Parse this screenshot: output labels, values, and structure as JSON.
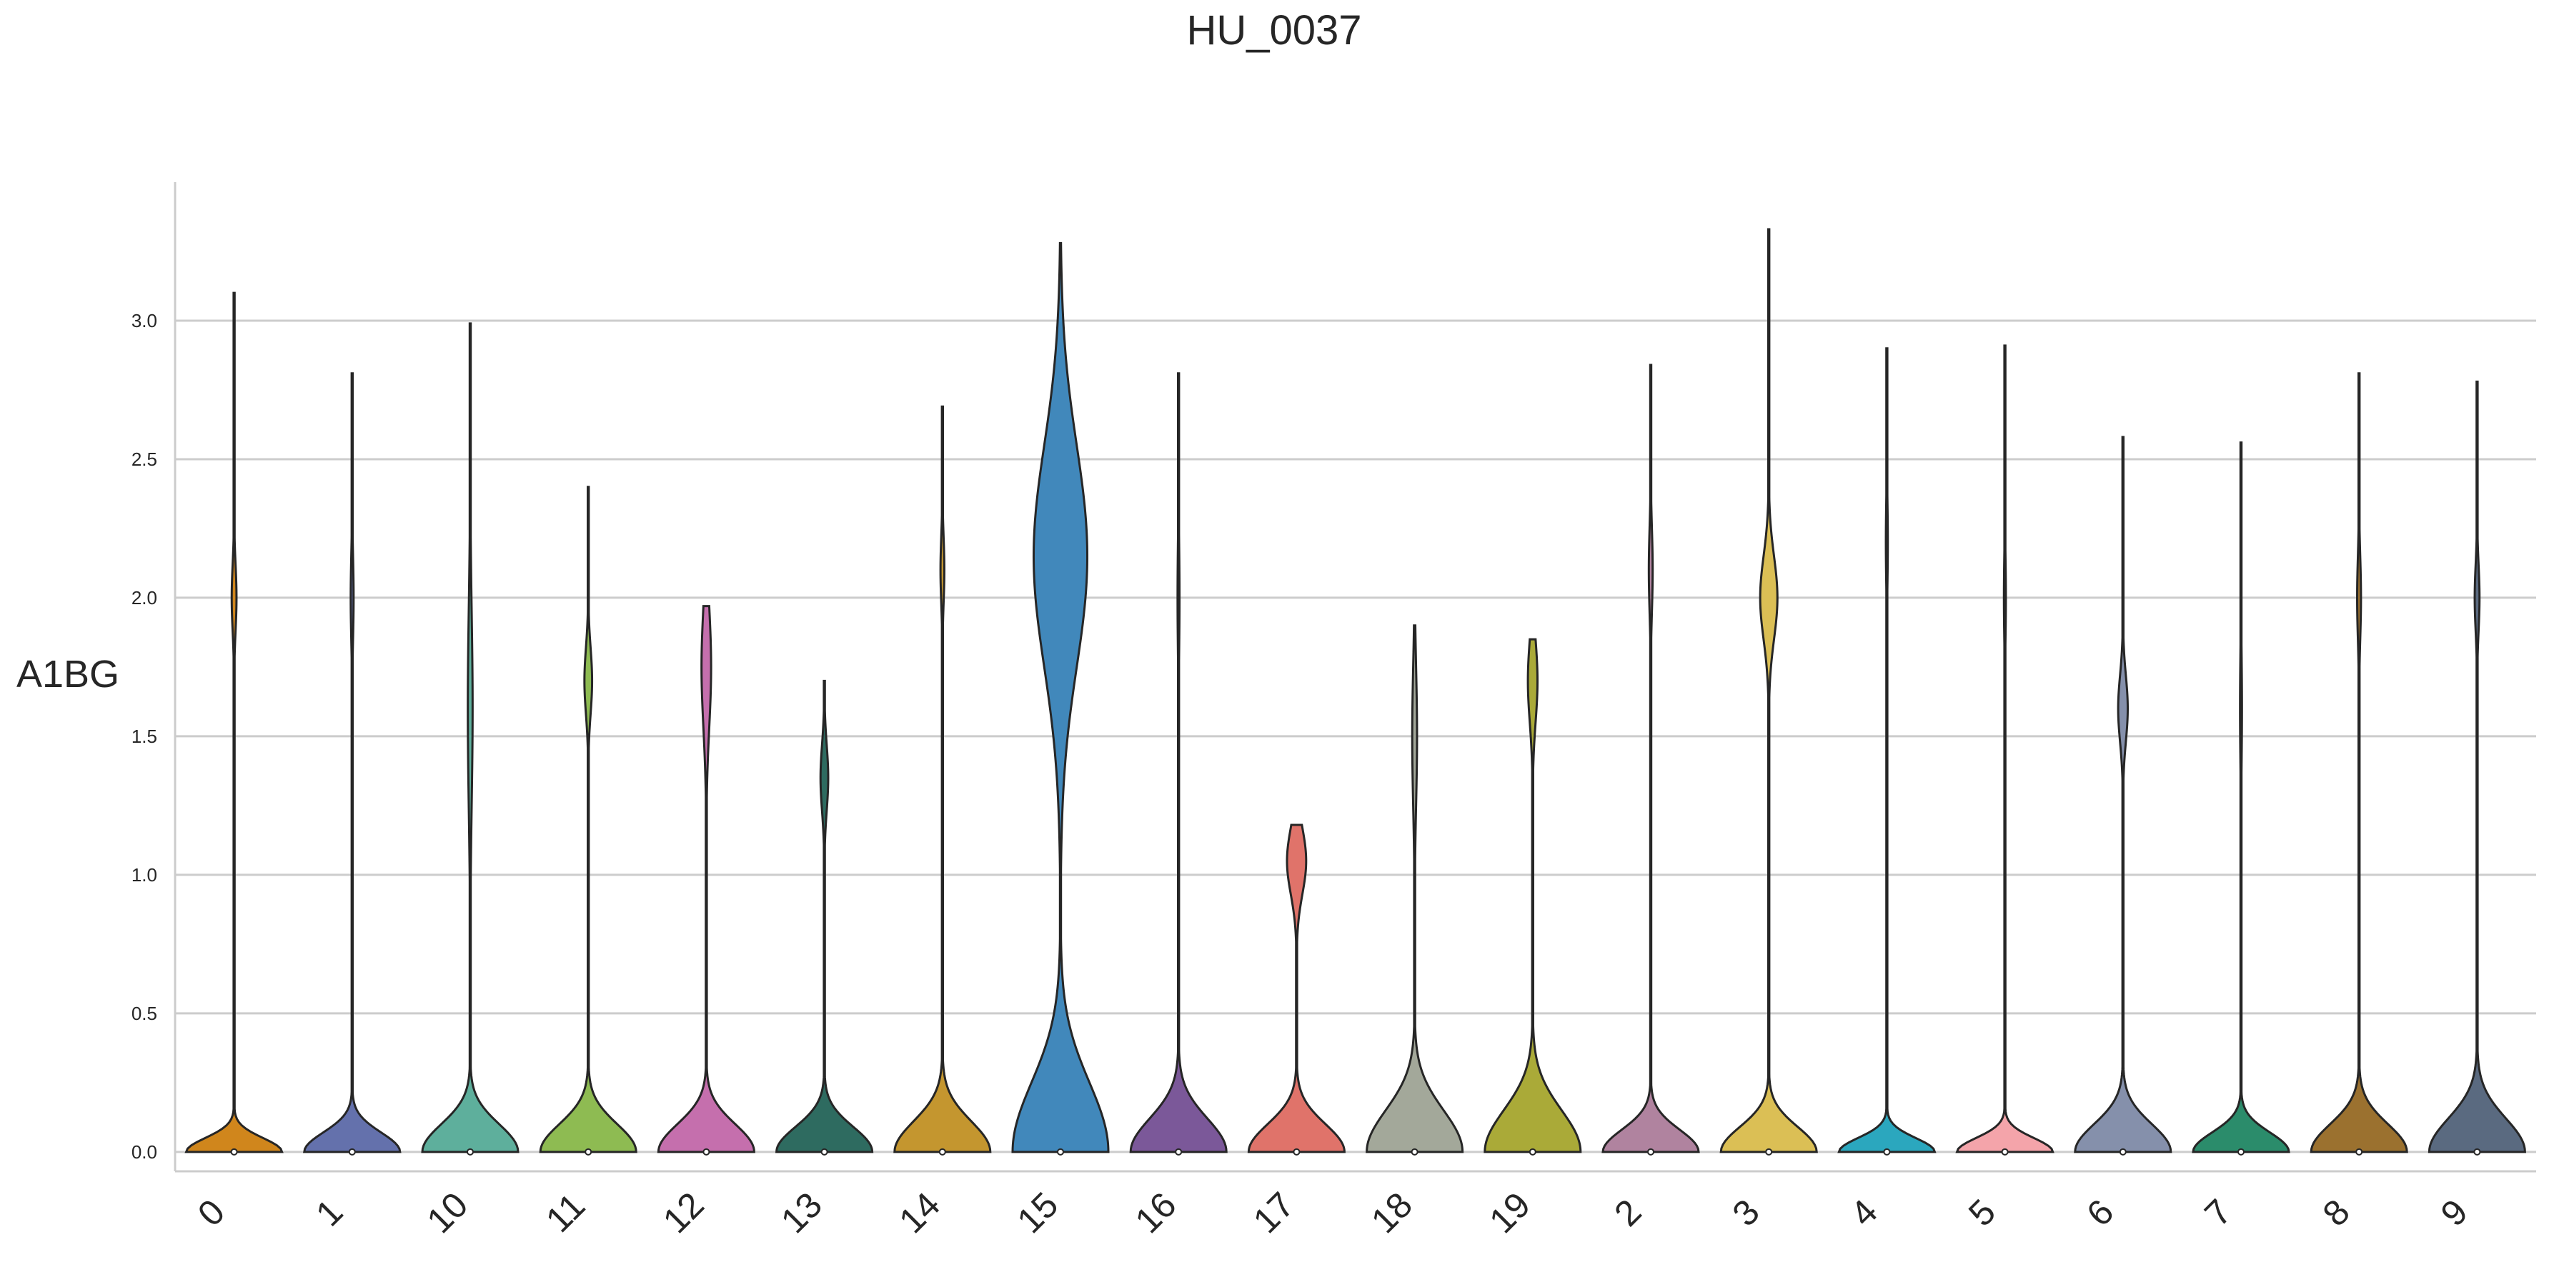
{
  "chart_data": {
    "type": "violin",
    "title": "HU_0037",
    "ylabel": "A1BG",
    "xlabel": "",
    "ylim": [
      -0.07,
      3.5
    ],
    "yticks": [
      "0.0",
      "0.5",
      "1.0",
      "1.5",
      "2.0",
      "2.5",
      "3.0"
    ],
    "grid": "horizontal",
    "categories": [
      "0",
      "1",
      "10",
      "11",
      "12",
      "13",
      "14",
      "15",
      "16",
      "17",
      "18",
      "19",
      "2",
      "3",
      "4",
      "5",
      "6",
      "7",
      "8",
      "9"
    ],
    "series": [
      {
        "category": "0",
        "color": "#d0861c",
        "max": 3.1,
        "median": 0.0,
        "peak": 2.0,
        "modes": [
          [
            0.0,
            0.05,
            1.0
          ],
          [
            2.0,
            0.12,
            0.05
          ]
        ]
      },
      {
        "category": "1",
        "color": "#6471ac",
        "max": 2.81,
        "median": 0.0,
        "peak": 2.0,
        "modes": [
          [
            0.0,
            0.07,
            1.0
          ],
          [
            2.0,
            0.15,
            0.03
          ]
        ]
      },
      {
        "category": "10",
        "color": "#5eaf9c",
        "max": 2.99,
        "median": 0.0,
        "peak": 1.6,
        "modes": [
          [
            0.0,
            0.1,
            1.0
          ],
          [
            1.6,
            0.35,
            0.05
          ]
        ]
      },
      {
        "category": "11",
        "color": "#8ebb52",
        "max": 2.4,
        "median": 0.0,
        "peak": 1.7,
        "modes": [
          [
            0.0,
            0.1,
            1.0
          ],
          [
            1.7,
            0.12,
            0.08
          ]
        ]
      },
      {
        "category": "12",
        "color": "#c56fad",
        "max": 1.97,
        "median": 0.0,
        "peak": 1.75,
        "modes": [
          [
            0.0,
            0.1,
            1.0
          ],
          [
            1.75,
            0.22,
            0.1
          ]
        ]
      },
      {
        "category": "13",
        "color": "#2e6b60",
        "max": 1.7,
        "median": 0.0,
        "peak": 1.35,
        "modes": [
          [
            0.0,
            0.09,
            1.0
          ],
          [
            1.35,
            0.12,
            0.08
          ]
        ]
      },
      {
        "category": "14",
        "color": "#c4962f",
        "max": 2.69,
        "median": 0.0,
        "peak": 2.1,
        "modes": [
          [
            0.0,
            0.11,
            1.0
          ],
          [
            2.1,
            0.12,
            0.04
          ]
        ]
      },
      {
        "category": "15",
        "color": "#4188bb",
        "max": 3.28,
        "median": 0.0,
        "peak": 2.15,
        "modes": [
          [
            0.0,
            0.25,
            1.0
          ],
          [
            2.15,
            0.4,
            0.56
          ]
        ]
      },
      {
        "category": "16",
        "color": "#7b5899",
        "max": 2.81,
        "median": 0.0,
        "peak": 2.0,
        "modes": [
          [
            0.0,
            0.12,
            1.0
          ],
          [
            2.0,
            0.2,
            0.02
          ]
        ]
      },
      {
        "category": "17",
        "color": "#e0736a",
        "max": 1.18,
        "median": 0.0,
        "peak": 1.05,
        "modes": [
          [
            0.0,
            0.1,
            1.0
          ],
          [
            1.05,
            0.12,
            0.2
          ]
        ]
      },
      {
        "category": "18",
        "color": "#a3a89a",
        "max": 1.9,
        "median": 0.0,
        "peak": 1.5,
        "modes": [
          [
            0.0,
            0.15,
            1.0
          ],
          [
            1.5,
            0.25,
            0.05
          ]
        ]
      },
      {
        "category": "19",
        "color": "#aaaa38",
        "max": 1.85,
        "median": 0.0,
        "peak": 1.7,
        "modes": [
          [
            0.0,
            0.15,
            1.0
          ],
          [
            1.7,
            0.15,
            0.1
          ]
        ]
      },
      {
        "category": "2",
        "color": "#b0839f",
        "max": 2.84,
        "median": 0.0,
        "peak": 2.1,
        "modes": [
          [
            0.0,
            0.08,
            1.0
          ],
          [
            2.1,
            0.15,
            0.04
          ]
        ]
      },
      {
        "category": "3",
        "color": "#dbbf55",
        "max": 3.33,
        "median": 0.0,
        "peak": 2.0,
        "modes": [
          [
            0.0,
            0.09,
            1.0
          ],
          [
            2.0,
            0.15,
            0.18
          ]
        ]
      },
      {
        "category": "4",
        "color": "#2ba7be",
        "max": 2.9,
        "median": 0.0,
        "peak": 2.2,
        "modes": [
          [
            0.0,
            0.05,
            1.0
          ],
          [
            2.2,
            0.15,
            0.02
          ]
        ]
      },
      {
        "category": "5",
        "color": "#f4a4aa",
        "max": 2.91,
        "median": 0.0,
        "peak": 2.0,
        "modes": [
          [
            0.0,
            0.05,
            1.0
          ],
          [
            2.0,
            0.15,
            0.02
          ]
        ]
      },
      {
        "category": "6",
        "color": "#8590ab",
        "max": 2.58,
        "median": 0.0,
        "peak": 1.6,
        "modes": [
          [
            0.0,
            0.1,
            1.0
          ],
          [
            1.6,
            0.12,
            0.1
          ]
        ]
      },
      {
        "category": "7",
        "color": "#2b8c6b",
        "max": 2.56,
        "median": 0.0,
        "peak": 1.6,
        "modes": [
          [
            0.0,
            0.07,
            1.0
          ],
          [
            1.6,
            0.2,
            0.02
          ]
        ]
      },
      {
        "category": "8",
        "color": "#9b712f",
        "max": 2.81,
        "median": 0.0,
        "peak": 2.0,
        "modes": [
          [
            0.0,
            0.1,
            1.0
          ],
          [
            2.0,
            0.15,
            0.04
          ]
        ]
      },
      {
        "category": "9",
        "color": "#5a6a80",
        "max": 2.78,
        "median": 0.0,
        "peak": 2.0,
        "modes": [
          [
            0.0,
            0.12,
            1.0
          ],
          [
            2.0,
            0.12,
            0.05
          ]
        ]
      }
    ]
  }
}
